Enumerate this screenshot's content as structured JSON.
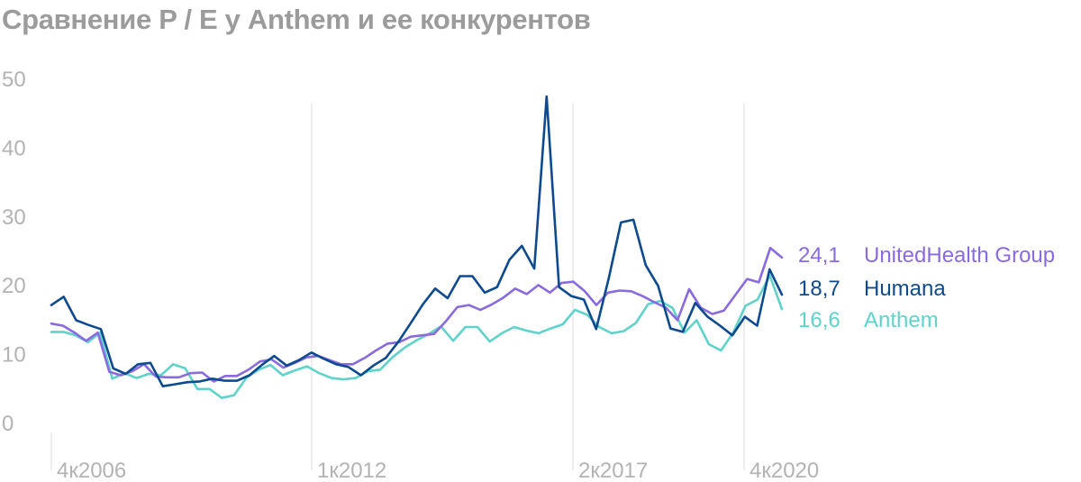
{
  "colors": {
    "united": "#8a6ae0",
    "humana": "#0d4a8f",
    "anthem": "#5fd3c9",
    "grid": "#dedede",
    "axis_text": "#b3b3b3",
    "title": "#9b9b9b"
  },
  "chart_data": {
    "type": "line",
    "title": "Сравнение P / E у Anthem и ее конкурентов",
    "ylim": [
      0,
      50
    ],
    "yticks": [
      "0",
      "10",
      "20",
      "30",
      "40",
      "50"
    ],
    "xticks": [
      "4к2006",
      "1к2012",
      "2к2017",
      "4к2020"
    ],
    "grid": "vertical",
    "legend": "right",
    "series": [
      {
        "name": "UnitedHealth Group",
        "end_label": "24,1",
        "color": "#8a6ae0",
        "values": [
          14.5,
          14.2,
          13.2,
          12.0,
          13.2,
          7.5,
          7.0,
          7.6,
          8.6,
          6.8,
          6.7,
          6.7,
          7.3,
          7.4,
          6.1,
          6.9,
          6.9,
          7.8,
          9.0,
          9.3,
          8.1,
          8.8,
          9.6,
          9.8,
          9.2,
          8.6,
          8.6,
          9.5,
          10.6,
          11.6,
          11.8,
          12.6,
          12.8,
          13.0,
          14.8,
          16.9,
          17.2,
          16.5,
          17.3,
          18.3,
          19.6,
          18.8,
          20.1,
          19.0,
          20.4,
          20.6,
          19.2,
          17.2,
          19.0,
          19.3,
          19.2,
          18.5,
          17.6,
          16.8,
          15.0,
          19.5,
          16.8,
          15.9,
          16.4,
          18.7,
          21.0,
          20.5,
          25.5,
          24.1
        ]
      },
      {
        "name": "Humana",
        "end_label": "18,7",
        "color": "#0d4a8f",
        "values": [
          17.2,
          18.4,
          15.0,
          14.3,
          13.7,
          8.0,
          7.2,
          8.6,
          8.8,
          5.4,
          5.7,
          6.0,
          6.1,
          6.5,
          6.2,
          6.2,
          7.0,
          8.5,
          9.8,
          8.4,
          9.2,
          10.3,
          9.4,
          8.6,
          8.2,
          7.0,
          8.4,
          9.5,
          11.8,
          14.5,
          17.3,
          19.6,
          18.2,
          21.4,
          21.4,
          19.0,
          19.8,
          23.8,
          25.8,
          22.5,
          47.5,
          19.8,
          18.5,
          18.0,
          13.7,
          21.0,
          29.2,
          29.6,
          23.0,
          20.0,
          13.8,
          13.3,
          17.5,
          15.5,
          14.2,
          12.8,
          15.5,
          14.2,
          22.4,
          18.7
        ]
      },
      {
        "name": "Anthem",
        "end_label": "16,6",
        "color": "#5fd3c9",
        "values": [
          13.3,
          13.3,
          12.8,
          11.8,
          13.2,
          6.5,
          7.3,
          6.6,
          7.2,
          7.0,
          8.6,
          8.0,
          5.0,
          5.0,
          3.7,
          4.1,
          6.6,
          7.8,
          8.5,
          7.0,
          7.7,
          8.3,
          7.3,
          6.6,
          6.4,
          6.6,
          7.6,
          7.8,
          9.6,
          11.0,
          12.1,
          13.0,
          14.1,
          12.0,
          14.0,
          14.0,
          11.9,
          13.1,
          14.0,
          13.5,
          13.1,
          13.8,
          14.4,
          16.5,
          15.8,
          14.0,
          13.1,
          13.4,
          14.6,
          17.3,
          17.8,
          16.8,
          13.2,
          15.0,
          11.5,
          10.6,
          13.2,
          17.1,
          18.0,
          21.5,
          16.6
        ]
      }
    ]
  }
}
